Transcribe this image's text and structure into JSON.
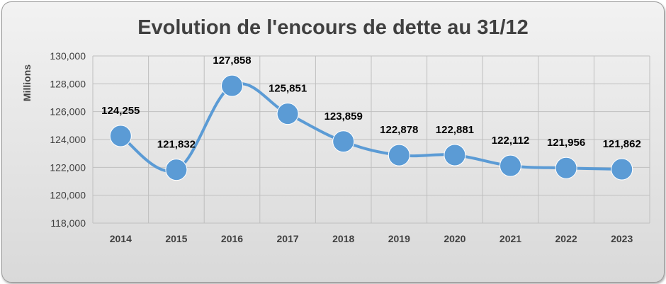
{
  "chart_data": {
    "type": "line",
    "title": "Evolution de l'encours de dette au 31/12",
    "ylabel": "Millions",
    "xlabel": "",
    "categories": [
      "2014",
      "2015",
      "2016",
      "2017",
      "2018",
      "2019",
      "2020",
      "2021",
      "2022",
      "2023"
    ],
    "series": [
      {
        "values": [
          124255,
          121832,
          127858,
          125851,
          123859,
          122878,
          122881,
          122112,
          121956,
          121862
        ],
        "labels": [
          "124,255",
          "121,832",
          "127,858",
          "125,851",
          "123,859",
          "122,878",
          "122,881",
          "122,112",
          "121,956",
          "121,862"
        ]
      }
    ],
    "ylim": [
      118000,
      130000
    ],
    "yticks": [
      118000,
      120000,
      122000,
      124000,
      126000,
      128000,
      130000
    ],
    "ytick_labels": [
      "118,000",
      "120,000",
      "122,000",
      "124,000",
      "126,000",
      "128,000",
      "130,000"
    ],
    "grid": true,
    "smooth": true,
    "colors": {
      "series": "#5b9bd5",
      "grid": "#bfbfbf"
    }
  }
}
